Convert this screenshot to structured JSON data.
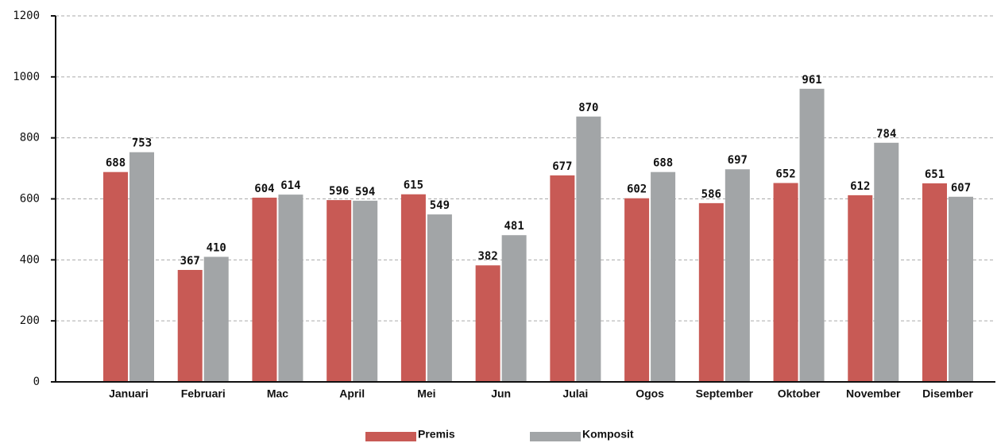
{
  "chart_data": {
    "type": "bar",
    "categories": [
      "Januari",
      "Februari",
      "Mac",
      "April",
      "Mei",
      "Jun",
      "Julai",
      "Ogos",
      "September",
      "Oktober",
      "November",
      "Disember"
    ],
    "series": [
      {
        "name": "Premis",
        "color": "#c85a55",
        "values": [
          688,
          367,
          604,
          596,
          615,
          382,
          677,
          602,
          586,
          652,
          612,
          651
        ]
      },
      {
        "name": "Komposit",
        "color": "#a2a5a7",
        "values": [
          753,
          410,
          614,
          594,
          549,
          481,
          870,
          688,
          697,
          961,
          784,
          607
        ]
      }
    ],
    "ylim": [
      0,
      1200
    ],
    "yticks": [
      0,
      200,
      400,
      600,
      800,
      1000,
      1200
    ],
    "grid": true,
    "legend": "bottom"
  }
}
